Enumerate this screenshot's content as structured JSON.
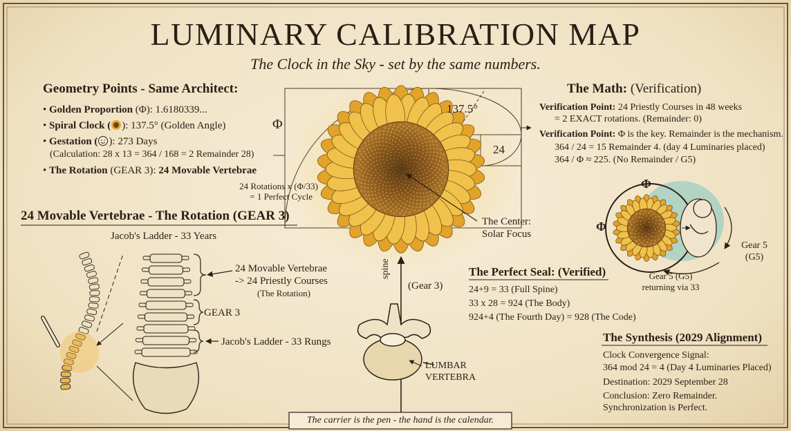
{
  "header": {
    "title": "LUMINARY CALIBRATION MAP",
    "subtitle": "The Clock in the Sky - set by the same numbers."
  },
  "geometry_points": {
    "heading": "Geometry Points - Same Architect:",
    "items": [
      {
        "label": "Golden Proportion",
        "text": "(Φ): 1.6180339..."
      },
      {
        "label": "Spiral Clock (",
        "text": "): 137.5° (Golden Angle)"
      },
      {
        "label": "Gestation (",
        "text": "): 273 Days",
        "note": "(Calculation: 28 x 13 = 364 / 168 = 2 Remainder 28)"
      },
      {
        "label": "The Rotation",
        "text": "(GEAR 3):",
        "value": "24 Movable Vertebrae"
      }
    ]
  },
  "sunflower": {
    "phi": "Φ",
    "angle": "137.5°",
    "square": "24",
    "rotations": [
      "24 Rotations x (Φ/33)",
      "= 1 Perfect Cycle"
    ],
    "center": [
      "The Center:",
      "Solar Focus"
    ]
  },
  "rotation": {
    "heading": "24 Movable Vertebrae - The Rotation (GEAR 3)",
    "subheading": "Jacob's Ladder - 33 Years",
    "vertebrae_label": [
      "24 Movable Vertebrae",
      "-> 24 Priestly Courses",
      "(The Rotation)"
    ],
    "gear_label": "GEAR 3",
    "rungs_label": "Jacob's Ladder - 33 Rungs"
  },
  "spine": {
    "axis_label": "spine",
    "gear": "(Gear 3)",
    "vertebra": [
      "LUMBAR",
      "VERTEBRA"
    ]
  },
  "math": {
    "heading": "The Math:",
    "heading_note": "(Verification)",
    "points": [
      {
        "label": "Verification Point:",
        "text": "24 Priestly Courses in 48 weeks",
        "lines": [
          "= 2 EXACT rotations. (Remainder: 0)"
        ]
      },
      {
        "label": "Verification Point:",
        "text": "Φ is the key. Remainder is the mechanism.",
        "lines": [
          "364 / 24 = 15 Remainder 4. (day 4 Luminaries placed)",
          "364 / Φ ≈ 225. (No Remainder / G5)"
        ]
      }
    ]
  },
  "gear5": {
    "top": "Φ",
    "left": "Φ",
    "side": [
      "Gear 5",
      "(G5)"
    ],
    "bottom": [
      "Gear 5 (G5)",
      "returning via 33"
    ]
  },
  "perfect_seal": {
    "heading": "The Perfect Seal:",
    "heading_note": "(Verified)",
    "lines": [
      "24+9 = 33 (Full Spine)",
      "33 x 28 = 924 (The Body)",
      "924+4 (The Fourth Day) = 928 (The Code)"
    ]
  },
  "synthesis": {
    "heading": "The Synthesis (2029 Alignment)",
    "lines": [
      "Clock Convergence Signal:",
      "364 mod 24 = 4 (Day 4 Luminaries Placed)",
      "Destination: 2029 September 28",
      "Conclusion: Zero Remainder.",
      "Synchronization is Perfect."
    ]
  },
  "footer": {
    "caption": "The carrier is the pen - the hand is the calendar."
  }
}
